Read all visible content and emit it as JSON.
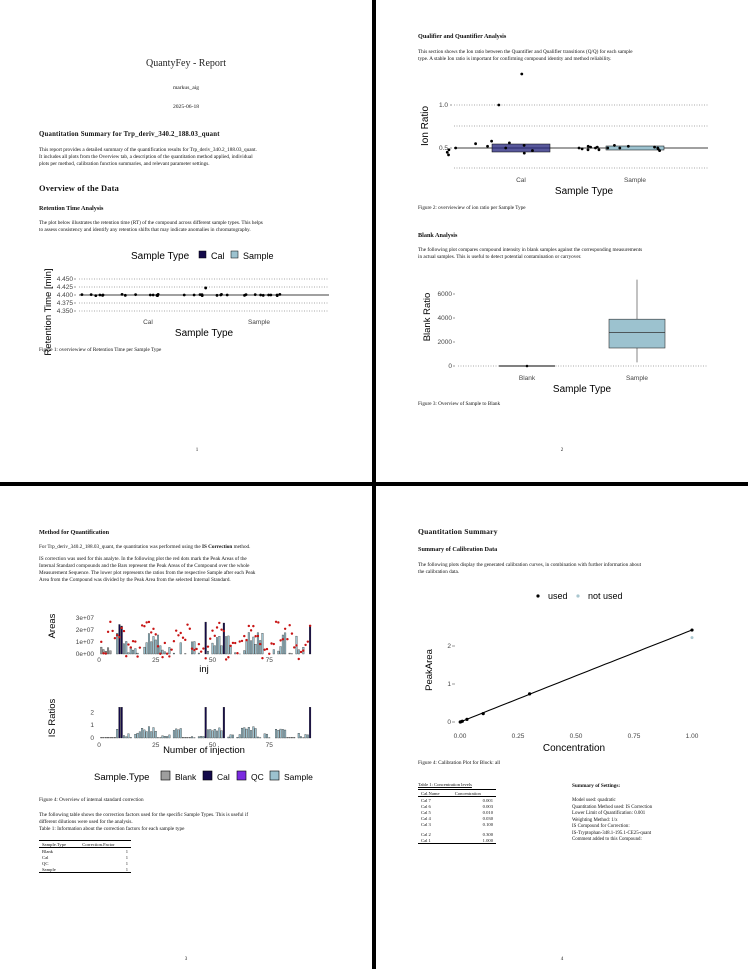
{
  "page1": {
    "title": "QuantyFey - Report",
    "author": "markus_aig",
    "date": "2025-06-18",
    "section_title": "Quantitation Summary for Trp_deriv_340.2_188.03_quant",
    "intro_line1": "This report provides a detailed summary of the quantification results for Trp_deriv_340.2_188.03_quant.",
    "intro_line2": "It includes all plots from the Overview tab, a description of the quantitation method applied, individual",
    "intro_line3": "plots per method, calibration function summaries, and relevant parameter settings.",
    "overview_heading": "Overview of the Data",
    "rt_heading": "Retention Time Analysis",
    "rt_text1": "The plot below illustrates the retention time (RT) of the compound across different sample types. This helps",
    "rt_text2": "to assess consistency and identify any retention shifts that may indicate anomalies in chromatography.",
    "legend_title": "Sample Type",
    "legend_cal": "Cal",
    "legend_sample": "Sample",
    "y_axis": "Retention Time [min]",
    "x_axis": "Sample Type",
    "y_ticks": [
      "4.450",
      "4.425",
      "4.400",
      "4.375",
      "4.350"
    ],
    "x_ticks": [
      "Cal",
      "Sample"
    ],
    "caption": "Figure 1: overviewiew of Retention Time per Sample Type",
    "page_number": "1"
  },
  "page2": {
    "qq_heading": "Qualifier and Quantifier Analysis",
    "qq_text1": "This section shows the Ion ratio between the Quantifier and Qualifier transitions (Q/Q) for each sample",
    "qq_text2": "type. A stable Ion ratio is important for confirming compound identity and method reliability.",
    "ion_y_axis": "Ion Ratio",
    "ion_y_ticks": [
      "1.0",
      "0.5"
    ],
    "ion_x_ticks": [
      "Cal",
      "Sample"
    ],
    "ion_x_axis": "Sample Type",
    "caption2": "Figure 2: overviewiew of ion ratio per Sample Type",
    "blank_heading": "Blank Analysis",
    "blank_text1": "The following plot compares compound intensity in blank samples against the corresponding measurements",
    "blank_text2": "in actual samples. This is useful to detect potential contamination or carryover.",
    "blank_y_axis": "Blank Ratio",
    "blank_y_ticks": [
      "6000",
      "4000",
      "2000",
      "0"
    ],
    "blank_x_ticks": [
      "Blank",
      "Sample"
    ],
    "blank_x_axis": "Sample Type",
    "caption3": "Figure 3: Overview of Sample to Blank",
    "page_number": "2"
  },
  "page3": {
    "heading": "Method for Quantification",
    "line1_pre": "For Trp_deriv_340.2_188.03_quant, the quantitation was performed using the ",
    "line1_bold": "IS Correction",
    "line1_post": " method.",
    "para1": "IS correction was used for this analyte. In the following plot the red dots mark the Peak Areas of the",
    "para2": "Internal Standard compounds and the Bars represent the Peak Areas of the Compound over the whole",
    "para3": "Measurement Sequence. The lower plot represents the ratios from the respective Sample after each Peak",
    "para4": "Area from the Compound was divided by the Peak Area from the selected Internal Standard.",
    "areas_y_axis": "Areas",
    "areas_y_ticks": [
      "3e+07",
      "2e+07",
      "1e+07",
      "0e+00"
    ],
    "areas_x_ticks": [
      "0",
      "25",
      "50",
      "75"
    ],
    "areas_x_axis": "inj",
    "ratio_y_axis": "IS Ratios",
    "ratio_y_ticks": [
      "2",
      "1",
      "0"
    ],
    "ratio_x_ticks": [
      "0",
      "25",
      "50",
      "75"
    ],
    "ratio_x_axis": "Number of injection",
    "legend_title": "Sample.Type",
    "legend_items": [
      "Blank",
      "Cal",
      "QC",
      "Sample"
    ],
    "caption4": "Figure 4: Overview of internal standard correction",
    "after1": "The following table shows the correction factors used for the specific Sample Types.  This is useful if",
    "after2": "different dilutions were used for the analysis.",
    "table_caption": "Table 1: Information about the correction factors for each sample type",
    "table_headers": [
      "Sample.Type",
      "Correction.Factor"
    ],
    "table_rows": [
      [
        "Blank",
        "1"
      ],
      [
        "Cal",
        "1"
      ],
      [
        "QC",
        "1"
      ],
      [
        "Sample",
        "1"
      ]
    ],
    "page_number": "3"
  },
  "page4": {
    "heading": "Quantitation Summary",
    "sub": "Summary of Calibration Data",
    "text1": "The following plots display the generated calibration curves, in combination with further information about",
    "text2": "the calibration data.",
    "legend_used": "used",
    "legend_not_used": "not used",
    "y_axis": "PeakArea",
    "y_ticks": [
      "2",
      "1",
      "0"
    ],
    "x_ticks": [
      "0.00",
      "0.25",
      "0.50",
      "0.75",
      "1.00"
    ],
    "x_axis": "Concentration",
    "caption": "Figure 4: Calibration Plot for Block: all",
    "table_caption": "Table 1: Concentration levels",
    "table_headers": [
      "Cal.Name",
      "Concentration"
    ],
    "table_rows": [
      [
        "Cal 7",
        "0.001"
      ],
      [
        "Cal 6",
        "0.003"
      ],
      [
        "Cal 5",
        "0.010"
      ],
      [
        "Cal 4",
        "0.030"
      ],
      [
        "Cal 3",
        "0.100"
      ],
      [
        "Cal 2",
        "0.300"
      ],
      [
        "Cal 1",
        "1.000"
      ]
    ],
    "settings_title": "Summary of Settings:",
    "settings": [
      "Model used: quadratic",
      "Quantitation Method used: IS Correction",
      "Lower Limit of Quantification: 0.001",
      "Weighting Method: 1/x",
      "IS Compound for Correction:",
      "IS-Tryptophan-348.1-195.1-CE25-quant",
      "Comment added to this Compound:"
    ],
    "page_number": "4"
  },
  "colors": {
    "cal": "#140a4a",
    "blank": "#9e9e9e",
    "qc": "#7b2be0",
    "sample": "#9cc2cf",
    "is_points": "#c81414",
    "not_used": "#a9c6cf"
  },
  "chart_data": [
    {
      "type": "scatter",
      "title": "",
      "xlabel": "Sample Type",
      "ylabel": "Retention Time [min]",
      "categories": [
        "Cal",
        "Sample"
      ],
      "ylim": [
        4.35,
        4.45
      ],
      "series": [
        {
          "name": "Cal",
          "values": [
            4.4,
            4.401,
            4.399,
            4.402,
            4.398,
            4.4,
            4.399,
            4.401,
            4.4,
            4.398,
            4.402,
            4.4,
            4.401,
            4.399
          ]
        },
        {
          "name": "Sample",
          "values": [
            4.4,
            4.401,
            4.399,
            4.4,
            4.402,
            4.398,
            4.4,
            4.401,
            4.399,
            4.4,
            4.422,
            4.4,
            4.401,
            4.399,
            4.4,
            4.402,
            4.398,
            4.4,
            4.401,
            4.4
          ]
        }
      ]
    },
    {
      "type": "scatter",
      "title": "",
      "xlabel": "Sample Type",
      "ylabel": "Ion Ratio",
      "categories": [
        "Cal",
        "Sample"
      ],
      "series": [
        {
          "name": "Cal",
          "values": [
            0.5,
            0.52,
            0.48,
            0.55,
            0.45,
            0.5,
            0.58,
            0.42,
            0.53,
            0.47,
            1.0,
            1.72,
            0.56,
            0.44
          ]
        },
        {
          "name": "Sample",
          "values": [
            0.5,
            0.51,
            0.49,
            0.52,
            0.48,
            0.5,
            0.53,
            0.47,
            0.5,
            0.51,
            0.49,
            0.5,
            0.52,
            0.48,
            0.5,
            0.51
          ]
        }
      ]
    },
    {
      "type": "bar",
      "title": "",
      "xlabel": "Sample Type",
      "ylabel": "Blank Ratio",
      "categories": [
        "Blank",
        "Sample"
      ],
      "boxes": [
        {
          "category": "Blank",
          "min": 0,
          "q1": 0,
          "median": 0,
          "q3": 0,
          "max": 0
        },
        {
          "category": "Sample",
          "min": 300,
          "q1": 1500,
          "median": 2800,
          "q3": 3900,
          "max": 7200
        }
      ]
    },
    {
      "type": "bar",
      "title": "",
      "xlabel": "inj",
      "ylabel": "Areas",
      "xlim": [
        0,
        94
      ],
      "ylim": [
        0,
        30000000
      ],
      "note": "bars = compound peak areas, red points = internal standard peak areas"
    },
    {
      "type": "bar",
      "title": "",
      "xlabel": "Number of injection",
      "ylabel": "IS Ratios",
      "xlim": [
        0,
        94
      ],
      "ylim": [
        0,
        3
      ]
    },
    {
      "type": "line",
      "title": "",
      "xlabel": "Concentration",
      "ylabel": "PeakArea",
      "xlim": [
        0,
        1.0
      ],
      "ylim": [
        0,
        2.5
      ],
      "series": [
        {
          "name": "used",
          "x": [
            0.001,
            0.003,
            0.01,
            0.03,
            0.1,
            0.3,
            1.0
          ],
          "y": [
            0.0,
            0.005,
            0.02,
            0.07,
            0.22,
            0.74,
            2.42
          ]
        },
        {
          "name": "not used",
          "x": [
            1.0
          ],
          "y": [
            2.22
          ]
        }
      ]
    }
  ]
}
